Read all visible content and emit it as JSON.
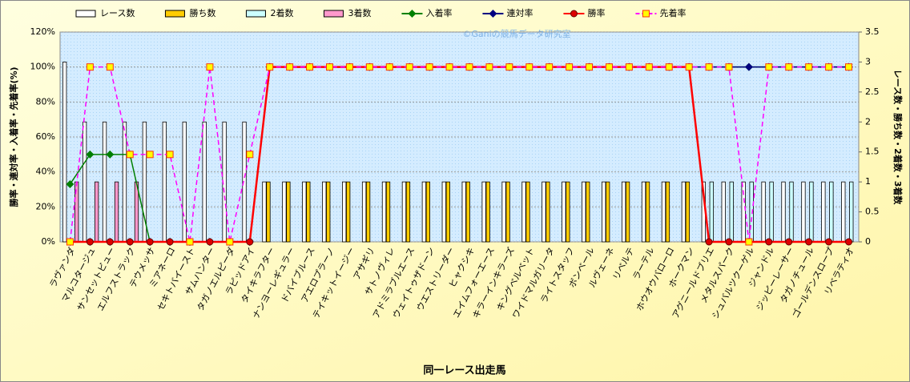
{
  "chart_data": {
    "type": "combo",
    "watermark": "©Ganiの競馬データ研究室",
    "x_label": "同一レース出走馬",
    "y_label": "勝率・連対率・入着率・先着率(%)",
    "y2_label": "レース数・勝ち数・2着数・3着数",
    "grid": true,
    "legend": "top",
    "categories": [
      "ラヴァンダ",
      "マルコタージュ",
      "サンセットビュー",
      "エルフストラック",
      "テウメッサ",
      "ミアネーロ",
      "セキトバイースト",
      "サムハンター",
      "タガノエルピーダ",
      "ラピッドアイ",
      "タイキラフター",
      "ナンヨーレギュラー",
      "ドバイブルース",
      "アエロプラーノ",
      "テイキットイージー",
      "アサギリ",
      "サトノヴィレ",
      "アドミラブルエース",
      "ウェイトゥザドーン",
      "ウエストリーダー",
      "ヒャクシキ",
      "エイムフォーエース",
      "キラーインキラーズ",
      "キングベルベット",
      "ワイドマルガリータ",
      "ライトスタッフ",
      "ボンベール",
      "ルヴェーネ",
      "リベルテ",
      "ラーテル",
      "ホウオウバローロ",
      "ホークマン",
      "アグニールドブリエ",
      "メタルスパーク",
      "シュバルツクーゲル",
      "ジャンドル",
      "ジッピーレーサー",
      "タガノチュール",
      "ゴールデンスロープ",
      "リベラティオ"
    ],
    "ylim": [
      0,
      120
    ],
    "yticks": [
      {
        "value": 0,
        "label": "0%"
      },
      {
        "value": 20,
        "label": "20%"
      },
      {
        "value": 40,
        "label": "40%"
      },
      {
        "value": 60,
        "label": "60%"
      },
      {
        "value": 80,
        "label": "80%"
      },
      {
        "value": 100,
        "label": "100%"
      },
      {
        "value": 120,
        "label": "120%"
      }
    ],
    "y2lim": [
      0,
      3.5
    ],
    "y2ticks": [
      0,
      0.5,
      1,
      1.5,
      2,
      2.5,
      3,
      3.5
    ],
    "series": [
      {
        "name": "レース数",
        "type": "bar",
        "axis": "y2",
        "color": "#ffffff",
        "values": [
          3,
          2,
          2,
          2,
          2,
          2,
          2,
          2,
          2,
          2,
          1,
          1,
          1,
          1,
          1,
          1,
          1,
          1,
          1,
          1,
          1,
          1,
          1,
          1,
          1,
          1,
          1,
          1,
          1,
          1,
          1,
          1,
          1,
          1,
          1,
          1,
          1,
          1,
          1,
          1
        ]
      },
      {
        "name": "勝ち数",
        "type": "bar",
        "axis": "y2",
        "color": "#ffcc00",
        "values": [
          0,
          0,
          0,
          0,
          0,
          0,
          0,
          0,
          0,
          0,
          1,
          1,
          1,
          1,
          1,
          1,
          1,
          1,
          1,
          1,
          1,
          1,
          1,
          1,
          1,
          1,
          1,
          1,
          1,
          1,
          1,
          1,
          0,
          0,
          0,
          0,
          0,
          0,
          0,
          0
        ]
      },
      {
        "name": "2着数",
        "type": "bar",
        "axis": "y2",
        "color": "#ccffff",
        "values": [
          0,
          0,
          0,
          0,
          0,
          0,
          0,
          0,
          0,
          0,
          0,
          0,
          0,
          0,
          0,
          0,
          0,
          0,
          0,
          0,
          0,
          0,
          0,
          0,
          0,
          0,
          0,
          0,
          0,
          0,
          0,
          0,
          1,
          1,
          1,
          1,
          1,
          1,
          1,
          1
        ]
      },
      {
        "name": "3着数",
        "type": "bar",
        "axis": "y2",
        "color": "#ff99cc",
        "values": [
          1,
          1,
          1,
          1,
          0,
          0,
          0,
          0,
          0,
          0,
          0,
          0,
          0,
          0,
          0,
          0,
          0,
          0,
          0,
          0,
          0,
          0,
          0,
          0,
          0,
          0,
          0,
          0,
          0,
          0,
          0,
          0,
          0,
          0,
          0,
          0,
          0,
          0,
          0,
          0
        ]
      },
      {
        "name": "入着率",
        "type": "line",
        "axis": "y",
        "color": "#008000",
        "marker": "diamond",
        "values": [
          33,
          50,
          50,
          50,
          0,
          0,
          0,
          0,
          0,
          0,
          100,
          100,
          100,
          100,
          100,
          100,
          100,
          100,
          100,
          100,
          100,
          100,
          100,
          100,
          100,
          100,
          100,
          100,
          100,
          100,
          100,
          100,
          100,
          100,
          100,
          100,
          100,
          100,
          100,
          100
        ]
      },
      {
        "name": "連対率",
        "type": "line",
        "axis": "y",
        "color": "#000080",
        "marker": "diamond",
        "values": [
          0,
          0,
          0,
          0,
          0,
          0,
          0,
          0,
          0,
          0,
          100,
          100,
          100,
          100,
          100,
          100,
          100,
          100,
          100,
          100,
          100,
          100,
          100,
          100,
          100,
          100,
          100,
          100,
          100,
          100,
          100,
          100,
          100,
          100,
          100,
          100,
          100,
          100,
          100,
          100
        ]
      },
      {
        "name": "勝率",
        "type": "line",
        "axis": "y",
        "color": "#ff0000",
        "marker": "circle",
        "values": [
          0,
          0,
          0,
          0,
          0,
          0,
          0,
          0,
          0,
          0,
          100,
          100,
          100,
          100,
          100,
          100,
          100,
          100,
          100,
          100,
          100,
          100,
          100,
          100,
          100,
          100,
          100,
          100,
          100,
          100,
          100,
          100,
          0,
          0,
          0,
          0,
          0,
          0,
          0,
          0
        ]
      },
      {
        "name": "先着率",
        "type": "line",
        "axis": "y",
        "color": "#ff00ff",
        "marker": "square",
        "dashed": true,
        "values": [
          0,
          100,
          100,
          50,
          50,
          50,
          0,
          100,
          0,
          50,
          100,
          100,
          100,
          100,
          100,
          100,
          100,
          100,
          100,
          100,
          100,
          100,
          100,
          100,
          100,
          100,
          100,
          100,
          100,
          100,
          100,
          100,
          100,
          100,
          0,
          100,
          100,
          100,
          100,
          100
        ]
      }
    ]
  }
}
